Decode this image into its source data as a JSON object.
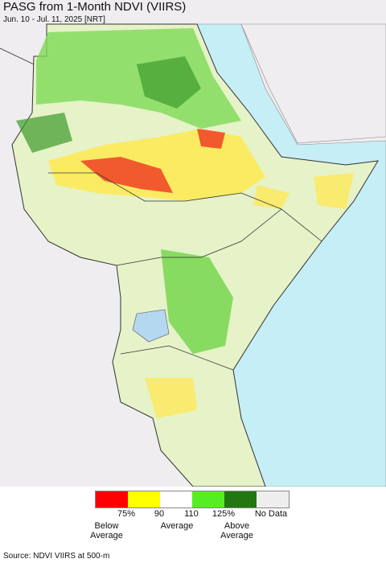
{
  "title": "PASG from 1-Month NDVI (VIIRS)",
  "subtitle": "Jun. 10 - Jul. 11, 2025 [NRT]",
  "legend": {
    "colors": [
      "#ff0000",
      "#ffff00",
      "#ffffff",
      "#55ee22",
      "#227711",
      "#eeeeee"
    ],
    "tick_labels": [
      "75%",
      "90",
      "110",
      "125%",
      "No Data"
    ],
    "group_labels": [
      "Below Average",
      "Average",
      "Above Average"
    ]
  },
  "source": "Source: NDVI VIIRS at 500-m"
}
